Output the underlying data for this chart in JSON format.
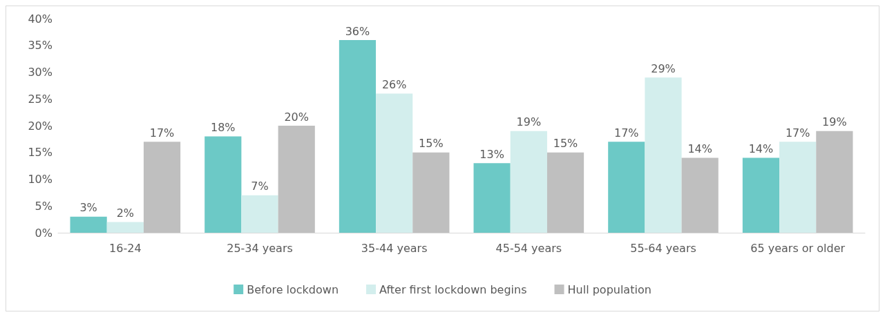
{
  "chart_data": {
    "type": "bar",
    "categories": [
      "16-24",
      "25-34 years",
      "35-44 years",
      "45-54 years",
      "55-64 years",
      "65 years or older"
    ],
    "series": [
      {
        "name": "Before lockdown",
        "color": "#6cc9c6",
        "values": [
          3,
          18,
          36,
          13,
          17,
          14
        ],
        "value_labels": [
          "3%",
          "18%",
          "36%",
          "13%",
          "17%",
          "14%"
        ]
      },
      {
        "name": "After first lockdown begins",
        "color": "#d3eeed",
        "values": [
          2,
          7,
          26,
          19,
          29,
          17
        ],
        "value_labels": [
          "2%",
          "7%",
          "26%",
          "19%",
          "29%",
          "17%"
        ]
      },
      {
        "name": "Hull population",
        "color": "#bfbfbf",
        "values": [
          17,
          20,
          15,
          15,
          14,
          19
        ],
        "value_labels": [
          "17%",
          "20%",
          "15%",
          "15%",
          "14%",
          "19%"
        ]
      }
    ],
    "ylim": [
      0,
      40
    ],
    "yticks": [
      {
        "value": 0,
        "label": "0%"
      },
      {
        "value": 5,
        "label": "5%"
      },
      {
        "value": 10,
        "label": "10%"
      },
      {
        "value": 15,
        "label": "15%"
      },
      {
        "value": 20,
        "label": "20%"
      },
      {
        "value": 25,
        "label": "25%"
      },
      {
        "value": 30,
        "label": "30%"
      },
      {
        "value": 35,
        "label": "35%"
      },
      {
        "value": 40,
        "label": "40%"
      }
    ],
    "grid": false,
    "legend": "bottom"
  }
}
